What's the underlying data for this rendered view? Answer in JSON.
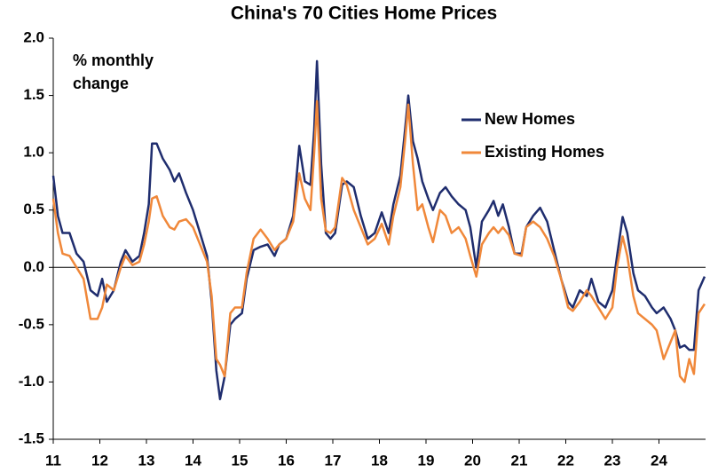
{
  "chart_data": {
    "type": "line",
    "title": "China's 70 Cities Home Prices",
    "annotation": [
      "% monthly",
      "change"
    ],
    "legend": "upper right",
    "grid": false,
    "xlim": [
      11,
      25
    ],
    "xticks": [
      11,
      12,
      13,
      14,
      15,
      16,
      17,
      18,
      19,
      20,
      21,
      22,
      23,
      24
    ],
    "ylim": [
      -1.5,
      2.0
    ],
    "yticks": [
      {
        "value": 2,
        "label": "2.0"
      },
      1.5,
      {
        "value": 1,
        "label": "1.0"
      },
      0.5,
      {
        "value": 0,
        "label": "0.0"
      },
      -0.5,
      {
        "value": -1,
        "label": "-1.0"
      },
      -1.5
    ],
    "x": [
      11.0,
      11.1,
      11.2,
      11.35,
      11.5,
      11.65,
      11.8,
      11.95,
      12.05,
      12.15,
      12.3,
      12.45,
      12.55,
      12.7,
      12.85,
      12.95,
      13.05,
      13.12,
      13.22,
      13.35,
      13.5,
      13.6,
      13.7,
      13.85,
      14.0,
      14.15,
      14.3,
      14.4,
      14.5,
      14.58,
      14.68,
      14.8,
      14.9,
      15.05,
      15.15,
      15.3,
      15.45,
      15.6,
      15.75,
      15.85,
      16.0,
      16.15,
      16.28,
      16.4,
      16.52,
      16.6,
      16.66,
      16.75,
      16.85,
      16.95,
      17.05,
      17.2,
      17.3,
      17.45,
      17.6,
      17.75,
      17.9,
      18.05,
      18.2,
      18.3,
      18.45,
      18.55,
      18.62,
      18.72,
      18.82,
      18.92,
      19.05,
      19.15,
      19.3,
      19.42,
      19.55,
      19.7,
      19.85,
      19.95,
      20.08,
      20.2,
      20.35,
      20.45,
      20.55,
      20.65,
      20.78,
      20.9,
      21.05,
      21.15,
      21.3,
      21.45,
      21.6,
      21.75,
      21.9,
      22.05,
      22.15,
      22.3,
      22.45,
      22.55,
      22.7,
      22.85,
      23.0,
      23.1,
      23.22,
      23.32,
      23.45,
      23.55,
      23.7,
      23.85,
      23.95,
      24.1,
      24.25,
      24.35,
      24.45,
      24.55,
      24.65,
      24.75,
      24.85,
      24.98
    ],
    "series": [
      {
        "name": "New Homes",
        "color": "#1f2d6e",
        "values": [
          0.8,
          0.45,
          0.3,
          0.3,
          0.12,
          0.05,
          -0.2,
          -0.25,
          -0.1,
          -0.3,
          -0.2,
          0.05,
          0.15,
          0.05,
          0.1,
          0.3,
          0.55,
          1.08,
          1.08,
          0.95,
          0.85,
          0.75,
          0.82,
          0.65,
          0.5,
          0.3,
          0.1,
          -0.3,
          -0.9,
          -1.15,
          -0.95,
          -0.5,
          -0.45,
          -0.4,
          -0.1,
          0.15,
          0.18,
          0.2,
          0.1,
          0.2,
          0.25,
          0.45,
          1.06,
          0.75,
          0.72,
          1.2,
          1.8,
          0.9,
          0.3,
          0.25,
          0.3,
          0.72,
          0.75,
          0.7,
          0.45,
          0.25,
          0.3,
          0.48,
          0.3,
          0.55,
          0.8,
          1.2,
          1.5,
          1.1,
          0.95,
          0.75,
          0.6,
          0.5,
          0.65,
          0.7,
          0.62,
          0.55,
          0.5,
          0.35,
          0.0,
          0.4,
          0.5,
          0.58,
          0.45,
          0.55,
          0.35,
          0.12,
          0.12,
          0.35,
          0.45,
          0.52,
          0.4,
          0.15,
          -0.1,
          -0.3,
          -0.35,
          -0.2,
          -0.25,
          -0.1,
          -0.3,
          -0.35,
          -0.2,
          0.1,
          0.44,
          0.3,
          -0.05,
          -0.2,
          -0.25,
          -0.35,
          -0.4,
          -0.35,
          -0.45,
          -0.55,
          -0.7,
          -0.68,
          -0.72,
          -0.72,
          -0.2,
          -0.08
        ]
      },
      {
        "name": "Existing Homes",
        "color": "#f0883a",
        "values": [
          0.6,
          0.3,
          0.12,
          0.1,
          0.0,
          -0.1,
          -0.45,
          -0.45,
          -0.35,
          -0.15,
          -0.2,
          0.0,
          0.1,
          0.02,
          0.05,
          0.2,
          0.4,
          0.6,
          0.62,
          0.45,
          0.35,
          0.33,
          0.4,
          0.42,
          0.35,
          0.2,
          0.05,
          -0.25,
          -0.8,
          -0.85,
          -0.95,
          -0.4,
          -0.35,
          -0.35,
          -0.05,
          0.25,
          0.33,
          0.25,
          0.15,
          0.2,
          0.25,
          0.4,
          0.82,
          0.6,
          0.5,
          1.0,
          1.45,
          0.6,
          0.32,
          0.3,
          0.35,
          0.78,
          0.72,
          0.5,
          0.35,
          0.2,
          0.25,
          0.38,
          0.2,
          0.45,
          0.7,
          1.1,
          1.42,
          0.9,
          0.5,
          0.55,
          0.35,
          0.22,
          0.5,
          0.45,
          0.3,
          0.35,
          0.25,
          0.1,
          -0.08,
          0.2,
          0.3,
          0.35,
          0.3,
          0.35,
          0.28,
          0.12,
          0.1,
          0.35,
          0.4,
          0.35,
          0.25,
          0.1,
          -0.1,
          -0.35,
          -0.38,
          -0.3,
          -0.2,
          -0.25,
          -0.35,
          -0.45,
          -0.35,
          0.0,
          0.27,
          0.1,
          -0.25,
          -0.4,
          -0.45,
          -0.5,
          -0.55,
          -0.8,
          -0.65,
          -0.55,
          -0.95,
          -1.0,
          -0.8,
          -0.93,
          -0.4,
          -0.32
        ]
      }
    ]
  }
}
